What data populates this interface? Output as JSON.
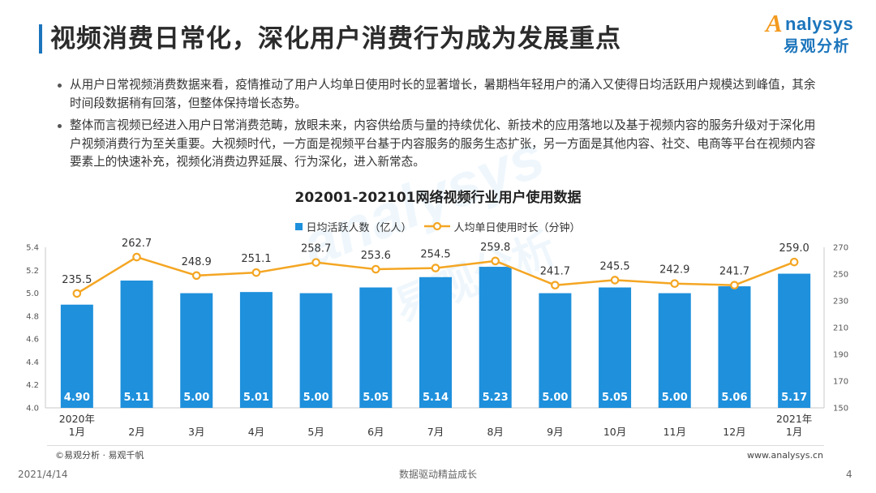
{
  "slide": {
    "title": "视频消费日常化，深化用户消费行为成为发展重点",
    "bullets": [
      "从用户日常视频消费数据来看，疫情推动了用户人均单日使用时长的显著增长，暑期档年轻用户的涌入又使得日均活跃用户规模达到峰值，其余时间段数据稍有回落，但整体保持增长态势。",
      "整体而言视频已经进入用户日常消费范畴，放眼未来，内容供给质与量的持续优化、新技术的应用落地以及基于视频内容的服务升级对于深化用户视频消费行为至关重要。大视频时代，一方面是视频平台基于内容服务的服务生态扩张，另一方面是其他内容、社交、电商等平台在视频内容要素上的快速补充，视频化消费边界延展、行为深化，进入新常态。"
    ],
    "source_note": "©易观分析 · 易观千帆",
    "website": "www.analysys.cn",
    "date": "2021/4/14",
    "slogan": "数据驱动精益成长",
    "page_number": "4"
  },
  "logo": {
    "initial": "A",
    "wordmark": "nalysys",
    "cn_name": "易观分析"
  },
  "watermark": {
    "en": "analysys",
    "cn": "易观分析"
  },
  "colors": {
    "brand_blue": "#1C75BC",
    "bar_blue": "#1E90DC",
    "line_orange": "#F4A623",
    "logo_orange": "#F39A1E"
  },
  "chart_data": {
    "type": "bar",
    "title": "202001-202101网络视频行业用户使用数据",
    "categories": [
      "1月",
      "2月",
      "3月",
      "4月",
      "5月",
      "6月",
      "7月",
      "8月",
      "9月",
      "10月",
      "11月",
      "12月",
      "1月"
    ],
    "category_groups": [
      {
        "label": "2020年",
        "start_index": 0
      },
      {
        "label": "2021年",
        "start_index": 12
      }
    ],
    "series": [
      {
        "name": "日均活跃人数（亿人）",
        "type": "bar",
        "axis": "left",
        "decimals": 2,
        "values": [
          4.9,
          5.11,
          5.0,
          5.01,
          5.0,
          5.05,
          5.14,
          5.23,
          5.0,
          5.05,
          5.0,
          5.06,
          5.17
        ]
      },
      {
        "name": "人均单日使用时长（分钟）",
        "type": "line",
        "axis": "right",
        "decimals": 1,
        "values": [
          235.5,
          262.7,
          248.9,
          251.1,
          258.7,
          253.6,
          254.5,
          259.8,
          241.7,
          245.5,
          242.9,
          241.7,
          259.0
        ]
      }
    ],
    "y_left": {
      "min": 4.0,
      "max": 5.4,
      "step": 0.2,
      "tick_decimals": 1
    },
    "y_right": {
      "min": 150,
      "max": 270,
      "step": 20,
      "tick_decimals": 0
    },
    "legend": "top-center",
    "grid": false,
    "data_labels": true
  }
}
